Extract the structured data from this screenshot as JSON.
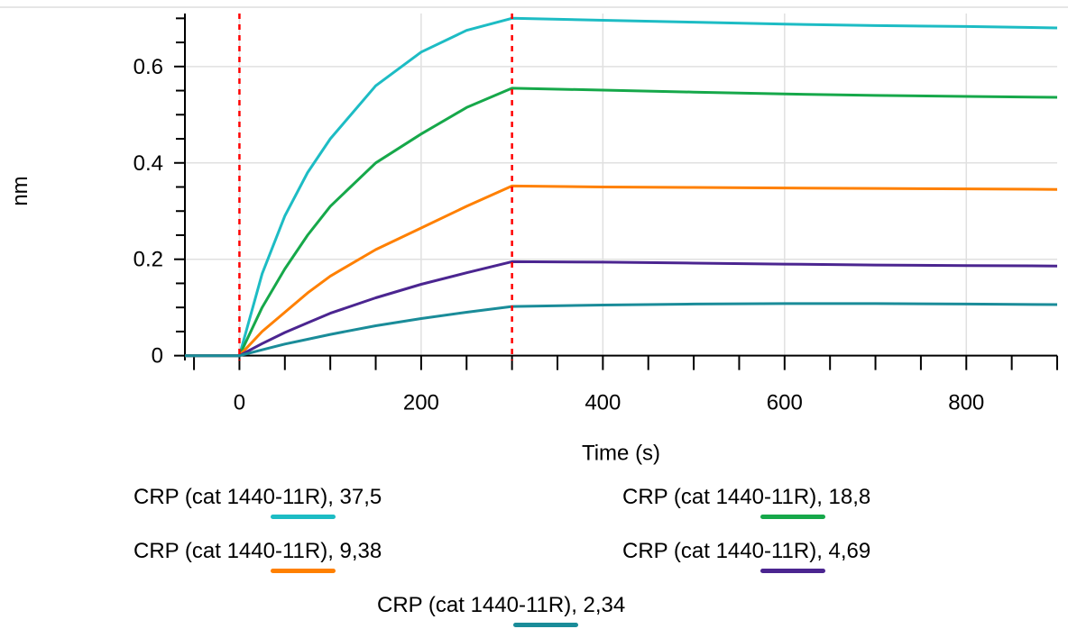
{
  "chart_data": {
    "type": "line",
    "title": "",
    "xlabel": "Time (s)",
    "ylabel": "nm",
    "xlim": [
      -60,
      900
    ],
    "ylim": [
      -0.01,
      0.71
    ],
    "x_ticks": [
      0,
      200,
      400,
      600,
      800
    ],
    "y_ticks": [
      0,
      0.2,
      0.4,
      0.6
    ],
    "x_tick_labels": [
      "0",
      "200",
      "400",
      "600",
      "800"
    ],
    "y_tick_labels": [
      "0",
      "0.2",
      "0.4",
      "0.6"
    ],
    "grid": true,
    "legend_position": "bottom",
    "vertical_markers": [
      0,
      300
    ],
    "marker_color": "#ff0000",
    "series": [
      {
        "name": "CRP (cat 1440-11R), 37,5",
        "color": "#1dbcc4",
        "x": [
          -60,
          0,
          25,
          50,
          75,
          100,
          150,
          200,
          250,
          300,
          400,
          500,
          600,
          700,
          800,
          900
        ],
        "y": [
          0,
          0,
          0.17,
          0.29,
          0.38,
          0.45,
          0.56,
          0.63,
          0.675,
          0.7,
          0.696,
          0.692,
          0.688,
          0.685,
          0.683,
          0.68
        ]
      },
      {
        "name": "CRP (cat 1440-11R), 18,8",
        "color": "#16a84a",
        "x": [
          -60,
          0,
          25,
          50,
          75,
          100,
          150,
          200,
          250,
          300,
          400,
          500,
          600,
          700,
          800,
          900
        ],
        "y": [
          0,
          0,
          0.1,
          0.18,
          0.25,
          0.31,
          0.4,
          0.46,
          0.515,
          0.555,
          0.551,
          0.547,
          0.543,
          0.54,
          0.538,
          0.536
        ]
      },
      {
        "name": "CRP (cat 1440-11R), 9,38",
        "color": "#ff8000",
        "x": [
          -60,
          0,
          25,
          50,
          75,
          100,
          150,
          200,
          250,
          300,
          400,
          500,
          600,
          700,
          800,
          900
        ],
        "y": [
          0,
          0,
          0.05,
          0.09,
          0.13,
          0.165,
          0.22,
          0.265,
          0.31,
          0.352,
          0.35,
          0.349,
          0.348,
          0.347,
          0.346,
          0.345
        ]
      },
      {
        "name": "CRP (cat 1440-11R), 4,69",
        "color": "#4b2590",
        "x": [
          -60,
          0,
          25,
          50,
          75,
          100,
          150,
          200,
          250,
          300,
          400,
          500,
          600,
          700,
          800,
          900
        ],
        "y": [
          0,
          0,
          0.025,
          0.048,
          0.068,
          0.088,
          0.12,
          0.148,
          0.172,
          0.195,
          0.194,
          0.192,
          0.19,
          0.188,
          0.187,
          0.186
        ]
      },
      {
        "name": "CRP (cat 1440-11R), 2,34",
        "color": "#1a8c99",
        "x": [
          -60,
          0,
          25,
          50,
          75,
          100,
          150,
          200,
          250,
          300,
          400,
          500,
          600,
          700,
          800,
          900
        ],
        "y": [
          0,
          0,
          0.012,
          0.024,
          0.034,
          0.044,
          0.062,
          0.077,
          0.09,
          0.102,
          0.105,
          0.107,
          0.108,
          0.108,
          0.107,
          0.106
        ]
      }
    ]
  }
}
